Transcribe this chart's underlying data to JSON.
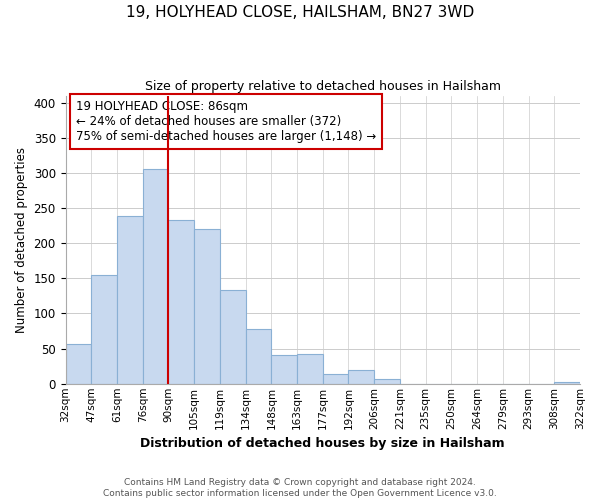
{
  "title1": "19, HOLYHEAD CLOSE, HAILSHAM, BN27 3WD",
  "title2": "Size of property relative to detached houses in Hailsham",
  "xlabel": "Distribution of detached houses by size in Hailsham",
  "ylabel": "Number of detached properties",
  "bar_labels": [
    "32sqm",
    "47sqm",
    "61sqm",
    "76sqm",
    "90sqm",
    "105sqm",
    "119sqm",
    "134sqm",
    "148sqm",
    "163sqm",
    "177sqm",
    "192sqm",
    "206sqm",
    "221sqm",
    "235sqm",
    "250sqm",
    "264sqm",
    "279sqm",
    "293sqm",
    "308sqm",
    "322sqm"
  ],
  "bar_values": [
    57,
    155,
    238,
    305,
    233,
    220,
    133,
    78,
    41,
    42,
    14,
    20,
    7,
    0,
    0,
    0,
    0,
    0,
    0,
    3
  ],
  "bar_color": "#c8d9ef",
  "bar_edge_color": "#8ab0d4",
  "vline_color": "#cc0000",
  "annotation_line1": "19 HOLYHEAD CLOSE: 86sqm",
  "annotation_line2": "← 24% of detached houses are smaller (372)",
  "annotation_line3": "75% of semi-detached houses are larger (1,148) →",
  "ylim": [
    0,
    410
  ],
  "yticks": [
    0,
    50,
    100,
    150,
    200,
    250,
    300,
    350,
    400
  ],
  "footer1": "Contains HM Land Registry data © Crown copyright and database right 2024.",
  "footer2": "Contains public sector information licensed under the Open Government Licence v3.0.",
  "title1_fontsize": 11,
  "title2_fontsize": 9,
  "ylabel_fontsize": 8.5,
  "xlabel_fontsize": 9,
  "tick_fontsize": 7.5,
  "footer_fontsize": 6.5,
  "ann_fontsize": 8.5,
  "grid_color": "#cccccc"
}
